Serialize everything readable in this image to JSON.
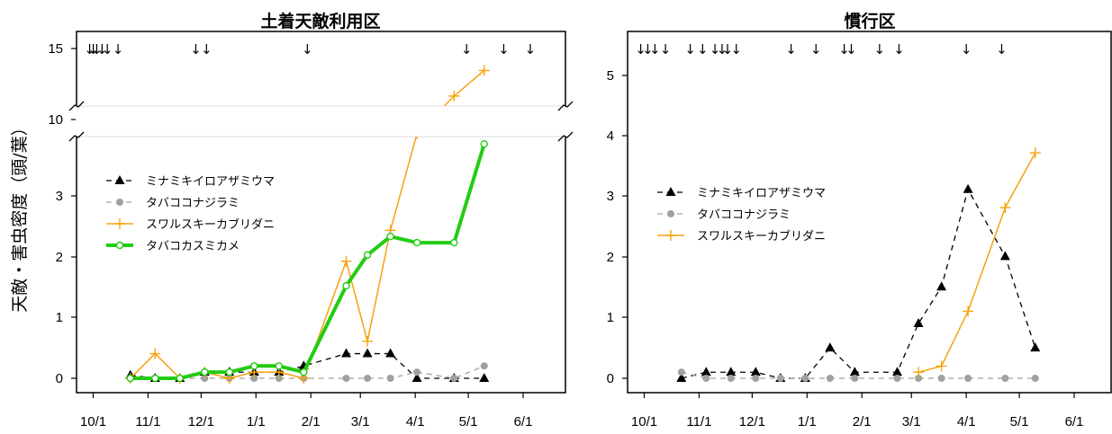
{
  "y_axis_label": "天敵・害虫密度（頭/葉）",
  "chart_data": [
    {
      "type": "line",
      "title": "土着天敵利用区",
      "x_ticks": [
        "10/1",
        "11/1",
        "12/1",
        "1/1",
        "2/1",
        "3/1",
        "4/1",
        "5/1",
        "6/1"
      ],
      "y_ticks": [
        "0",
        "1",
        "2",
        "3",
        "10",
        "15"
      ],
      "y_axis_break": true,
      "legend_position": "left",
      "spray_marks": [
        "9/29",
        "10/1",
        "10/3",
        "10/6",
        "10/9",
        "10/15",
        "11/28",
        "12/4",
        "1/30",
        "4/30",
        "5/21",
        "6/5"
      ],
      "series": [
        {
          "name": "ミナミキイロアザミウマ",
          "color": "#000000",
          "dash": "6,5",
          "marker": "triangle",
          "width": 1.3,
          "points": [
            [
              "10/22",
              0.05
            ],
            [
              "11/5",
              0.0
            ],
            [
              "11/19",
              0.0
            ],
            [
              "12/3",
              0.1
            ],
            [
              "12/17",
              0.1
            ],
            [
              "12/31",
              0.1
            ],
            [
              "1/14",
              0.1
            ],
            [
              "1/28",
              0.2
            ],
            [
              "2/21",
              0.4
            ],
            [
              "3/5",
              0.4
            ],
            [
              "3/18",
              0.4
            ],
            [
              "4/2",
              0.0
            ],
            [
              "4/23",
              0.0
            ],
            [
              "5/10",
              0.0
            ]
          ]
        },
        {
          "name": "タバココナジラミ",
          "color": "#a0a0a0",
          "dash": "6,5",
          "marker": "circle-filled",
          "width": 1.3,
          "points": [
            [
              "10/22",
              0.0
            ],
            [
              "11/5",
              0.0
            ],
            [
              "11/19",
              0.0
            ],
            [
              "12/3",
              0.0
            ],
            [
              "12/17",
              0.0
            ],
            [
              "12/31",
              0.0
            ],
            [
              "1/14",
              0.0
            ],
            [
              "1/28",
              0.0
            ],
            [
              "2/21",
              0.0
            ],
            [
              "3/5",
              0.0
            ],
            [
              "3/18",
              0.0
            ],
            [
              "4/2",
              0.1
            ],
            [
              "4/23",
              0.0
            ],
            [
              "5/10",
              0.2
            ]
          ]
        },
        {
          "name": "スワルスキーカブリダニ",
          "color": "#f5a20e",
          "dash": "",
          "marker": "plus",
          "width": 1.5,
          "points": [
            [
              "10/22",
              0.0
            ],
            [
              "11/5",
              0.4
            ],
            [
              "11/19",
              0.0
            ],
            [
              "12/3",
              0.1
            ],
            [
              "12/17",
              0.0
            ],
            [
              "12/31",
              0.1
            ],
            [
              "1/14",
              0.1
            ],
            [
              "1/28",
              0.0
            ],
            [
              "2/21",
              1.9
            ],
            [
              "3/5",
              0.6
            ],
            [
              "3/18",
              2.4
            ],
            [
              "4/2",
              9.5
            ],
            [
              "4/23",
              12.0
            ],
            [
              "5/10",
              13.7
            ]
          ]
        },
        {
          "name": "タバコカスミカメ",
          "color": "#22cc11",
          "dash": "",
          "marker": "circle-open",
          "width": 4,
          "points": [
            [
              "10/22",
              0.0
            ],
            [
              "11/5",
              0.0
            ],
            [
              "11/19",
              0.0
            ],
            [
              "12/3",
              0.1
            ],
            [
              "12/17",
              0.1
            ],
            [
              "12/31",
              0.2
            ],
            [
              "1/14",
              0.2
            ],
            [
              "1/28",
              0.1
            ],
            [
              "2/21",
              1.5
            ],
            [
              "3/5",
              2.0
            ],
            [
              "3/18",
              2.3
            ],
            [
              "4/2",
              2.2
            ],
            [
              "4/23",
              2.2
            ],
            [
              "5/10",
              3.8
            ]
          ]
        }
      ]
    },
    {
      "type": "line",
      "title": "慣行区",
      "x_ticks": [
        "10/1",
        "11/1",
        "12/1",
        "1/1",
        "2/1",
        "3/1",
        "4/1",
        "5/1",
        "6/1"
      ],
      "y_ticks": [
        "0",
        "1",
        "2",
        "3",
        "4",
        "5"
      ],
      "legend_position": "left",
      "spray_marks": [
        "9/29",
        "10/3",
        "10/7",
        "10/13",
        "10/27",
        "11/3",
        "11/10",
        "11/14",
        "11/17",
        "11/22",
        "12/23",
        "1/6",
        "1/22",
        "1/26",
        "2/11",
        "2/22",
        "4/1",
        "4/21"
      ],
      "series": [
        {
          "name": "ミナミキイロアザミウマ",
          "color": "#000000",
          "dash": "6,5",
          "marker": "triangle",
          "width": 1.3,
          "points": [
            [
              "10/22",
              0.0
            ],
            [
              "11/5",
              0.1
            ],
            [
              "11/19",
              0.1
            ],
            [
              "12/3",
              0.1
            ],
            [
              "12/17",
              0.0
            ],
            [
              "12/31",
              0.0
            ],
            [
              "1/14",
              0.5
            ],
            [
              "1/28",
              0.1
            ],
            [
              "2/21",
              0.1
            ],
            [
              "3/5",
              0.9
            ],
            [
              "3/18",
              1.5
            ],
            [
              "4/2",
              3.1
            ],
            [
              "4/23",
              2.0
            ],
            [
              "5/10",
              0.5
            ]
          ]
        },
        {
          "name": "タバココナジラミ",
          "color": "#a0a0a0",
          "dash": "6,5",
          "marker": "circle-filled",
          "width": 1.3,
          "points": [
            [
              "10/22",
              0.1
            ],
            [
              "11/5",
              0.0
            ],
            [
              "11/19",
              0.0
            ],
            [
              "12/3",
              0.0
            ],
            [
              "12/17",
              0.0
            ],
            [
              "12/31",
              0.0
            ],
            [
              "1/14",
              0.0
            ],
            [
              "1/28",
              0.0
            ],
            [
              "2/21",
              0.0
            ],
            [
              "3/5",
              0.0
            ],
            [
              "3/18",
              0.0
            ],
            [
              "4/2",
              0.0
            ],
            [
              "4/23",
              0.0
            ],
            [
              "5/10",
              0.0
            ]
          ]
        },
        {
          "name": "スワルスキーカブリダニ",
          "color": "#f5a20e",
          "dash": "",
          "marker": "plus",
          "width": 1.5,
          "points": [
            [
              "3/5",
              0.1
            ],
            [
              "3/18",
              0.2
            ],
            [
              "4/2",
              1.1
            ],
            [
              "4/23",
              2.8
            ],
            [
              "5/10",
              3.7
            ]
          ]
        }
      ]
    }
  ]
}
